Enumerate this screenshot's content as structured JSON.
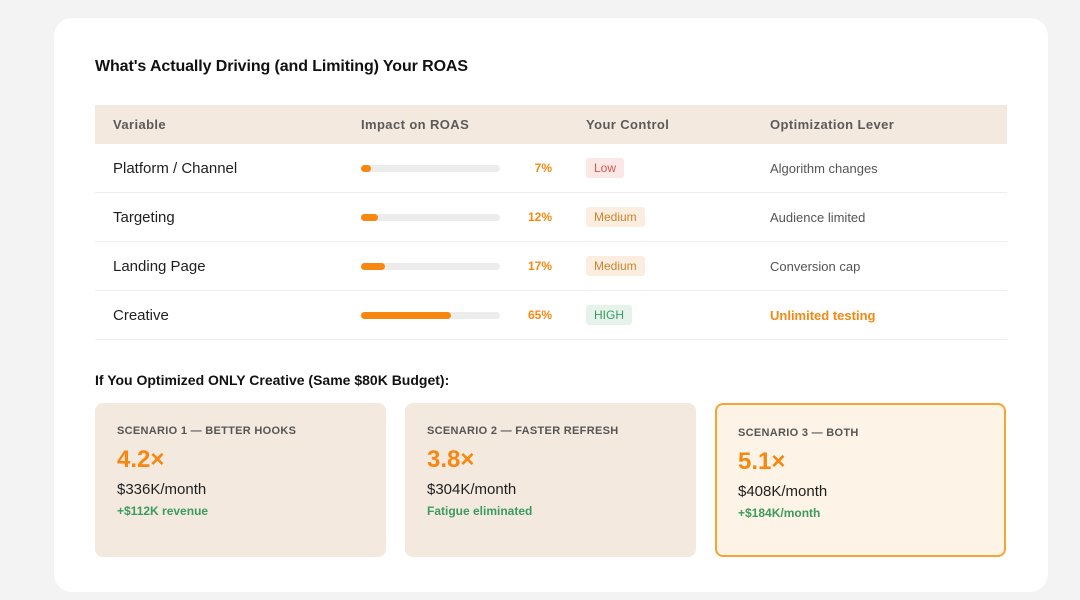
{
  "title": "What's Actually Driving (and Limiting) Your ROAS",
  "table": {
    "headers": [
      "Variable",
      "Impact on ROAS",
      "Your Control",
      "Optimization Lever"
    ],
    "rows": [
      {
        "variable": "Platform / Channel",
        "impact_pct": "7%",
        "impact_value": 0.07,
        "control": "Low",
        "control_level": "low",
        "lever": "Algorithm changes"
      },
      {
        "variable": "Targeting",
        "impact_pct": "12%",
        "impact_value": 0.12,
        "control": "Medium",
        "control_level": "medium",
        "lever": "Audience limited"
      },
      {
        "variable": "Landing Page",
        "impact_pct": "17%",
        "impact_value": 0.17,
        "control": "Medium",
        "control_level": "medium",
        "lever": "Conversion cap"
      },
      {
        "variable": "Creative",
        "impact_pct": "65%",
        "impact_value": 0.65,
        "control": "HIGH",
        "control_level": "high",
        "lever": "Unlimited testing"
      }
    ]
  },
  "subtitle": "If You Optimized ONLY Creative (Same $80K Budget):",
  "scenarios": [
    {
      "label": "SCENARIO 1 — BETTER HOOKS",
      "roas": "4.2×",
      "revenue": "$336K/month",
      "note": "+$112K revenue"
    },
    {
      "label": "SCENARIO 2 — FASTER REFRESH",
      "roas": "3.8×",
      "revenue": "$304K/month",
      "note": "Fatigue eliminated"
    },
    {
      "label": "SCENARIO 3 — BOTH",
      "roas": "5.1×",
      "revenue": "$408K/month",
      "note": "+$184K/month"
    }
  ],
  "colors": {
    "accent": "#f7870f",
    "positive": "#3c9b5e",
    "header_bg": "#f4e9df"
  }
}
